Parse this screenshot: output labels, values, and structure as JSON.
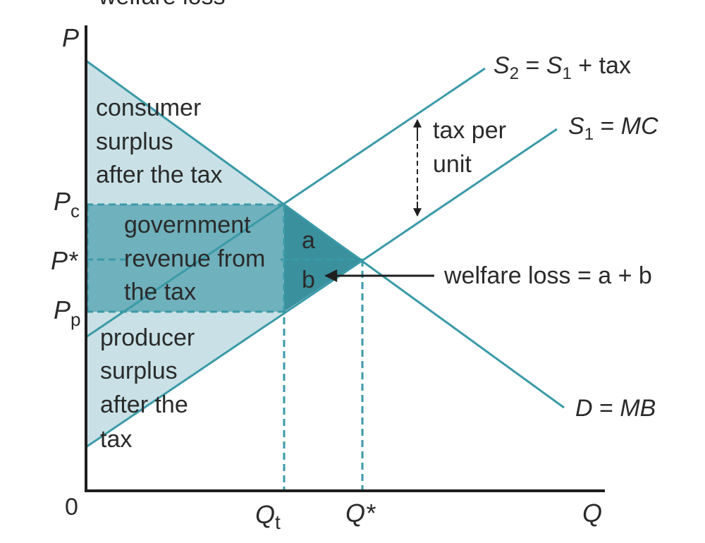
{
  "header_text": "welfare loss",
  "colors": {
    "line": "#3a9aa8",
    "axis": "#1e1e1e",
    "surplus_fill": "#c9e1e6",
    "revenue_fill": "#6fb1bc",
    "deadweight_fill": "#3a909d",
    "dash": "#3a9aa8",
    "text": "#2a2a2a"
  },
  "axes": {
    "y_label": "P",
    "x_label": "Q",
    "origin_label": "0"
  },
  "price_labels": {
    "pc_main": "P",
    "pc_sub": "c",
    "pstar": "P*",
    "pp_main": "P",
    "pp_sub": "p"
  },
  "quantity_labels": {
    "qt_main": "Q",
    "qt_sub": "t",
    "qstar": "Q*"
  },
  "curves": {
    "s2": {
      "s_main": "S",
      "s_sub": "2",
      "eq": "= ",
      "s1_main": "S",
      "s1_sub": "1",
      "rest": " + tax"
    },
    "s1": {
      "s_main": "S",
      "s_sub": "1",
      "eq": " = ",
      "mc": "MC"
    },
    "d": {
      "d": "D",
      "eq": " = ",
      "mb": "MB"
    }
  },
  "areas": {
    "consumer_surplus": [
      "consumer",
      "surplus",
      "after the tax"
    ],
    "government_revenue": [
      "government",
      "revenue from",
      "the tax"
    ],
    "producer_surplus": [
      "producer",
      "surplus",
      "after the",
      "tax"
    ],
    "a": "a",
    "b": "b"
  },
  "annotations": {
    "tax_per_unit": [
      "tax per",
      "unit"
    ],
    "welfare_loss": "welfare loss = a + b"
  }
}
